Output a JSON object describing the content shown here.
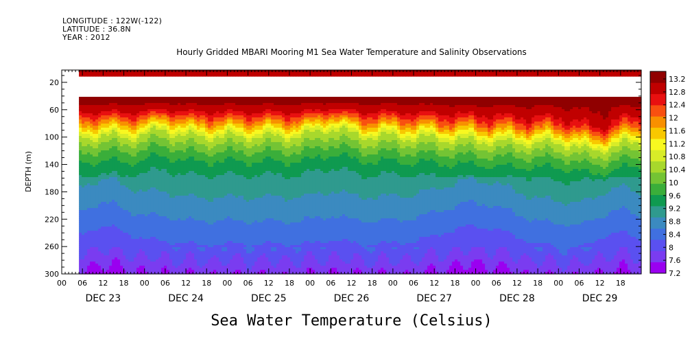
{
  "header": {
    "longitude": "LONGITUDE : 122W(-122)",
    "latitude": "LATITUDE : 36.8N",
    "year": "YEAR : 2012"
  },
  "chart_data": {
    "type": "heatmap",
    "title": "Hourly Gridded MBARI Mooring M1 Sea Water Temperature and Salinity Observations",
    "colorbar_label": "Sea Water Temperature (Celsius)",
    "ylabel": "DEPTH (m)",
    "ylim": [
      300,
      2
    ],
    "y_reversed": true,
    "y_ticks": [
      20,
      60,
      100,
      140,
      180,
      220,
      260,
      300
    ],
    "x_range_hours": [
      0,
      168
    ],
    "x_hour_labels": [
      "00",
      "06",
      "12",
      "18",
      "00",
      "06",
      "12",
      "18",
      "00",
      "06",
      "12",
      "18",
      "00",
      "06",
      "12",
      "18",
      "00",
      "06",
      "12",
      "18",
      "00",
      "06",
      "12",
      "18",
      "00",
      "06",
      "12",
      "18"
    ],
    "x_days": [
      "DEC 23",
      "DEC 24",
      "DEC 25",
      "DEC 26",
      "DEC 27",
      "DEC 28",
      "DEC 29"
    ],
    "data_start_hour": 5,
    "data_gap_depth_m": [
      12,
      40
    ],
    "colorbar_ticks": [
      "13.2",
      "12.8",
      "12.4",
      "12",
      "11.6",
      "11.2",
      "10.8",
      "10.4",
      "10",
      "9.6",
      "9.2",
      "8.8",
      "8.4",
      "8",
      "7.6",
      "7.2"
    ],
    "value_range": [
      7.2,
      13.4
    ],
    "colors": [
      "#9a00f0",
      "#7a3cf0",
      "#5a50f0",
      "#4070e0",
      "#3b8ac0",
      "#2f9a8e",
      "#0f9a50",
      "#3aae3a",
      "#74c434",
      "#a8d82c",
      "#d8ec28",
      "#f8f820",
      "#f8c800",
      "#f89000",
      "#f85010",
      "#e81010",
      "#c00000",
      "#900000"
    ],
    "profile_keypoints": [
      {
        "depth": 2,
        "temp": 13.1
      },
      {
        "depth": 12,
        "temp": 13.0
      },
      {
        "depth": 40,
        "temp": 13.3
      },
      {
        "depth": 60,
        "temp": 12.9
      },
      {
        "depth": 80,
        "temp": 11.8
      },
      {
        "depth": 100,
        "temp": 10.6
      },
      {
        "depth": 120,
        "temp": 10.0
      },
      {
        "depth": 140,
        "temp": 9.5
      },
      {
        "depth": 160,
        "temp": 9.2
      },
      {
        "depth": 180,
        "temp": 9.0
      },
      {
        "depth": 220,
        "temp": 8.6
      },
      {
        "depth": 260,
        "temp": 8.2
      },
      {
        "depth": 300,
        "temp": 7.6
      }
    ]
  }
}
